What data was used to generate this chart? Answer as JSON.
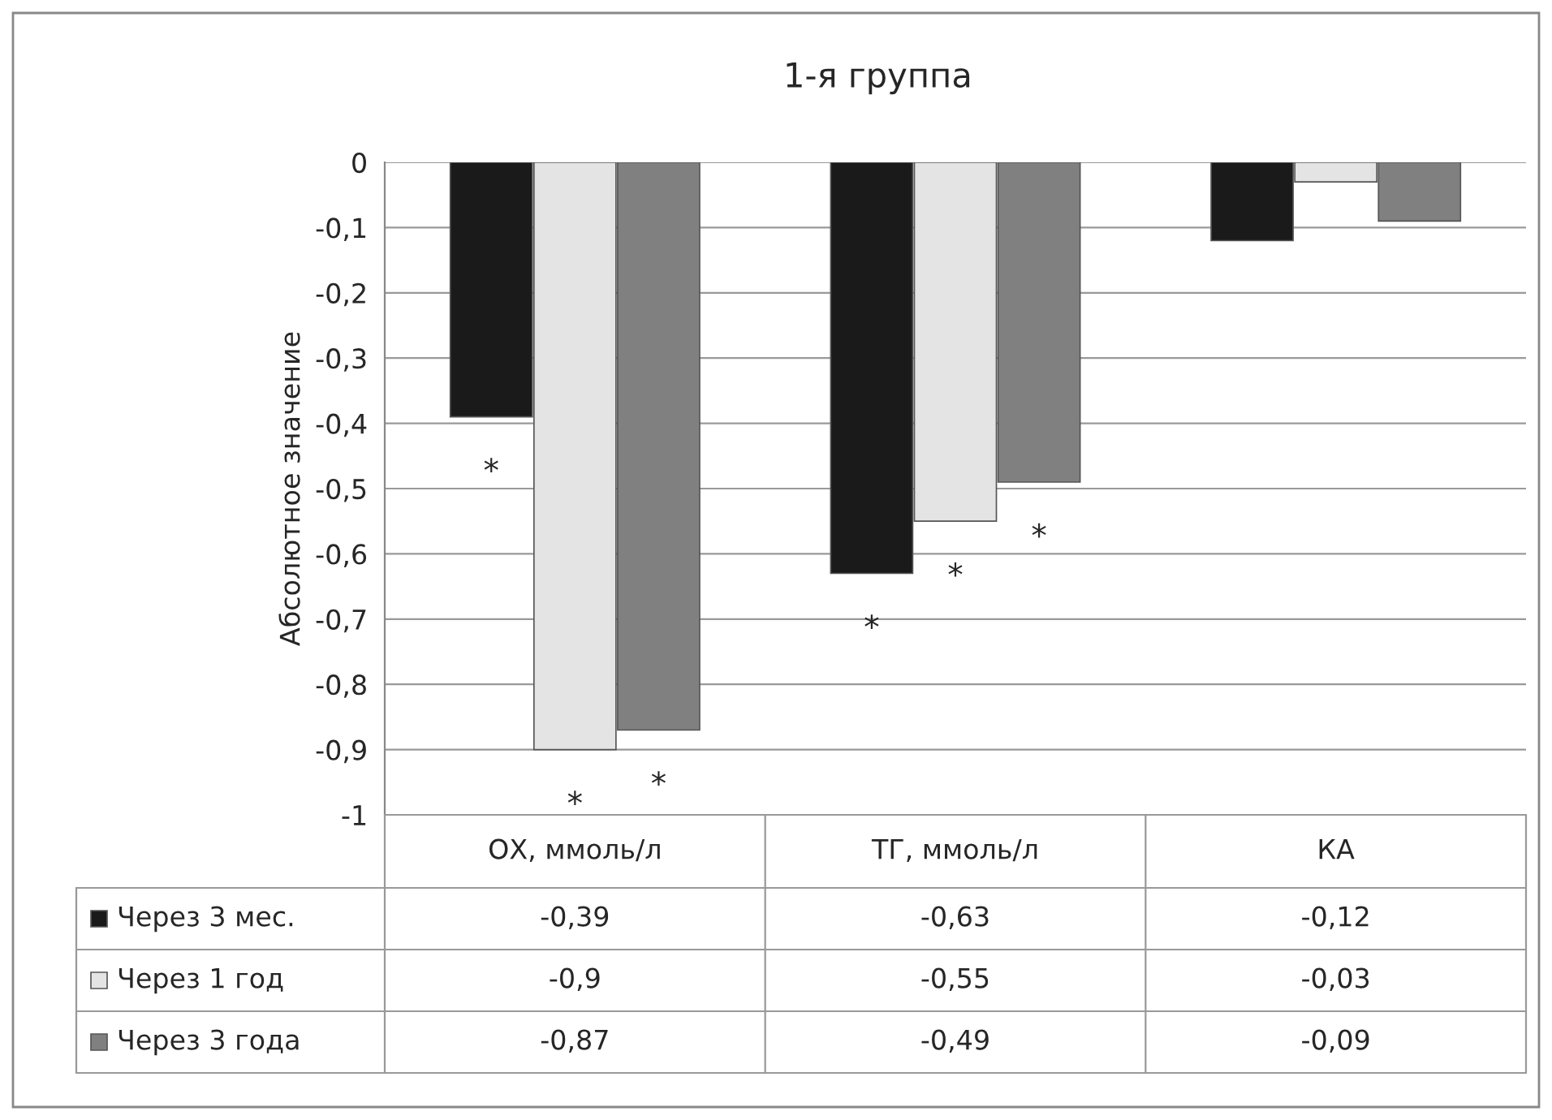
{
  "chart_data": {
    "type": "bar",
    "title": "1-я группа",
    "ylabel": "Абсолютное значение",
    "categories": [
      "ОХ, ммоль/л",
      "ТГ, ммоль/л",
      "КА"
    ],
    "series": [
      {
        "name": "Через 3 мес.",
        "color": "#1a1a1a",
        "values": [
          -0.39,
          -0.63,
          -0.12
        ],
        "value_labels": [
          "-0,39",
          "-0,63",
          "-0,12"
        ]
      },
      {
        "name": "Через 1 год",
        "color": "#e4e4e4",
        "values": [
          -0.9,
          -0.55,
          -0.03
        ],
        "value_labels": [
          "-0,9",
          "-0,55",
          "-0,03"
        ]
      },
      {
        "name": "Через 3 года",
        "color": "#808080",
        "values": [
          -0.87,
          -0.49,
          -0.09
        ],
        "value_labels": [
          "-0,87",
          "-0,49",
          "-0,09"
        ]
      }
    ],
    "ylim": [
      -1,
      0
    ],
    "yticks": [
      {
        "value": 0,
        "label": "0"
      },
      {
        "value": -0.1,
        "label": "-0,1"
      },
      {
        "value": -0.2,
        "label": "-0,2"
      },
      {
        "value": -0.3,
        "label": "-0,3"
      },
      {
        "value": -0.4,
        "label": "-0,4"
      },
      {
        "value": -0.5,
        "label": "-0,5"
      },
      {
        "value": -0.6,
        "label": "-0,6"
      },
      {
        "value": -0.7,
        "label": "-0,7"
      },
      {
        "value": -0.8,
        "label": "-0,8"
      },
      {
        "value": -0.9,
        "label": "-0,9"
      },
      {
        "value": -1,
        "label": "-1"
      }
    ],
    "grid": "y",
    "annotations": [
      "*",
      "*",
      "*",
      "*",
      "*",
      "*"
    ],
    "legend": "bottom"
  }
}
